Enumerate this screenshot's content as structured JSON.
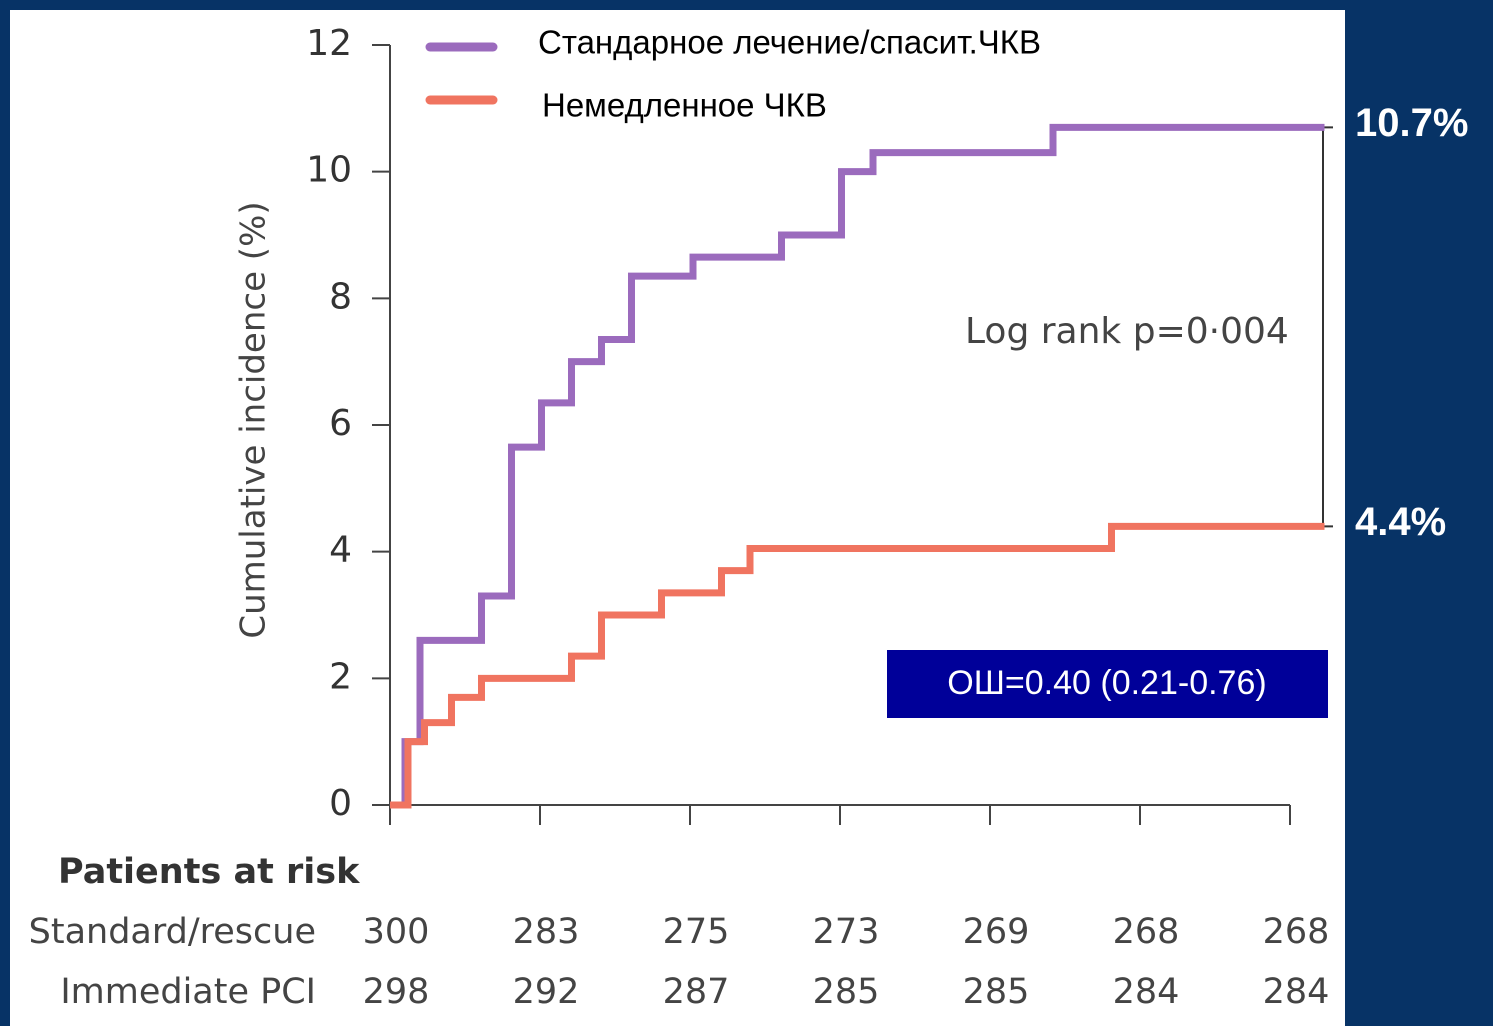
{
  "chart_data": {
    "type": "step",
    "ylabel": "Cumulative incidence (%)",
    "ylim": [
      0,
      12
    ],
    "yticks": [
      0,
      2,
      4,
      6,
      8,
      10,
      12
    ],
    "xlim": [
      0,
      6
    ],
    "xticks": [
      0,
      1,
      2,
      3,
      4,
      5,
      6
    ],
    "series": [
      {
        "name": "Стандарное лечение/спасит.ЧКВ",
        "color": "#9b6bbd",
        "x": [
          0,
          0.1,
          0.2,
          0.61,
          0.81,
          1.01,
          1.21,
          1.41,
          1.61,
          2.02,
          2.61,
          3.01,
          3.22,
          4.42,
          6.23
        ],
        "values": [
          0,
          1.0,
          2.6,
          3.3,
          5.65,
          6.35,
          7.0,
          7.35,
          8.35,
          8.65,
          9.0,
          10.0,
          10.3,
          10.7,
          10.7
        ],
        "value_labels": [
          null,
          null,
          null,
          null,
          null,
          null,
          null,
          null,
          null,
          null,
          null,
          null,
          null,
          null,
          "10.7%"
        ]
      },
      {
        "name": "Немедленное ЧКВ",
        "color": "#f07460",
        "x": [
          0,
          0.12,
          0.23,
          0.41,
          0.61,
          1.21,
          1.41,
          1.81,
          2.21,
          2.4,
          4.81,
          6.23
        ],
        "values": [
          0,
          1.0,
          1.3,
          1.7,
          2.0,
          2.35,
          3.0,
          3.35,
          3.7,
          4.05,
          4.4,
          4.4
        ],
        "value_labels": [
          null,
          null,
          null,
          null,
          null,
          null,
          null,
          null,
          null,
          null,
          null,
          "4.4%"
        ]
      }
    ],
    "annotations": [
      "Log rank p=0·004",
      "ОШ=0.40 (0.21-0.76)"
    ],
    "risk_table": {
      "title": "Patients at risk",
      "rows": [
        {
          "name": "Standard/rescue",
          "values": [
            300,
            283,
            275,
            273,
            269,
            268,
            268
          ]
        },
        {
          "name": "Immediate PCI",
          "values": [
            298,
            292,
            287,
            285,
            285,
            284,
            284
          ]
        }
      ]
    }
  }
}
